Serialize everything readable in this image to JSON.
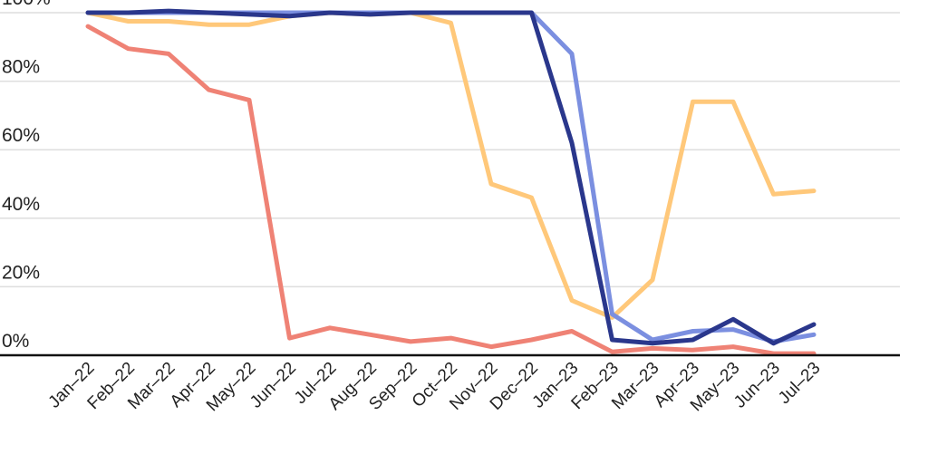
{
  "chart_data": {
    "type": "line",
    "title": "",
    "xlabel": "",
    "ylabel": "",
    "ylim": [
      0,
      100
    ],
    "yticks": [
      {
        "value": 0,
        "label": "0%"
      },
      {
        "value": 20,
        "label": "20%"
      },
      {
        "value": 40,
        "label": "40%"
      },
      {
        "value": 60,
        "label": "60%"
      },
      {
        "value": 80,
        "label": "80%"
      },
      {
        "value": 100,
        "label": "100%"
      }
    ],
    "categories": [
      "Jan–22",
      "Feb–22",
      "Mar–22",
      "Apr–22",
      "May–22",
      "Jun–22",
      "Jul–22",
      "Aug–22",
      "Sep–22",
      "Oct–22",
      "Nov–22",
      "Dec–22",
      "Jan–23",
      "Feb–23",
      "Mar–23",
      "Apr–23",
      "May–23",
      "Jun–23",
      "Jul–23"
    ],
    "grid": true,
    "series": [
      {
        "color": "#ffc87a",
        "values": [
          100,
          97.5,
          97.5,
          96.5,
          96.5,
          99,
          100,
          99.5,
          100,
          97,
          50,
          46,
          16,
          11,
          22,
          74,
          74,
          47,
          48
        ]
      },
      {
        "color": "#ef8275",
        "values": [
          96,
          89.5,
          88,
          77.5,
          74.5,
          5,
          8,
          6,
          4,
          5,
          2.5,
          4.5,
          7,
          1,
          2,
          1.5,
          2.5,
          0.5,
          0.5
        ]
      },
      {
        "color": "#7b8fe0",
        "values": [
          100,
          100,
          100,
          100,
          100,
          100,
          100,
          100,
          100,
          100,
          100,
          100,
          88,
          12,
          4.5,
          7,
          7.5,
          4,
          6
        ]
      },
      {
        "color": "#2a378c",
        "values": [
          100,
          100,
          100.5,
          100,
          99.5,
          99,
          100,
          99.5,
          100,
          100,
          100,
          100,
          62,
          4.5,
          3.5,
          4.5,
          10.5,
          3.5,
          9
        ]
      }
    ]
  }
}
